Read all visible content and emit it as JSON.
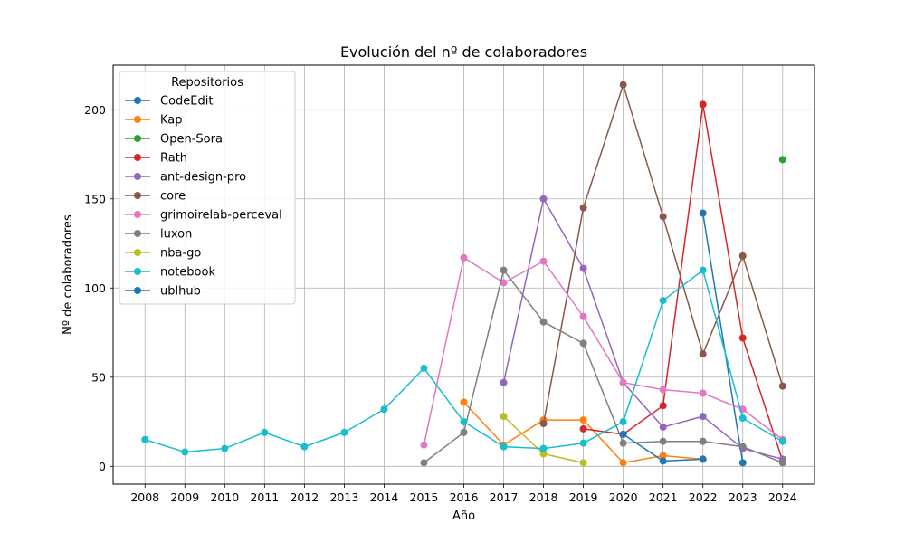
{
  "chart_data": {
    "type": "line",
    "title": "Evolución del nº de colaboradores",
    "xlabel": "Año",
    "ylabel": "Nº de colaboradores",
    "x": [
      2008,
      2009,
      2010,
      2011,
      2012,
      2013,
      2014,
      2015,
      2016,
      2017,
      2018,
      2019,
      2020,
      2021,
      2022,
      2023,
      2024
    ],
    "xlim": [
      2007.2,
      2024.8
    ],
    "ylim": [
      -10,
      225
    ],
    "yticks": [
      0,
      50,
      100,
      150,
      200
    ],
    "grid": true,
    "legend": {
      "title": "Repositorios",
      "placement": "top-left"
    },
    "series": [
      {
        "name": "CodeEdit",
        "color": "#1f77b4",
        "points": [
          [
            2022,
            142
          ],
          [
            2023,
            2
          ]
        ]
      },
      {
        "name": "Kap",
        "color": "#ff7f0e",
        "points": [
          [
            2016,
            36
          ],
          [
            2017,
            12
          ],
          [
            2018,
            26
          ],
          [
            2019,
            26
          ],
          [
            2020,
            2
          ],
          [
            2021,
            6
          ],
          [
            2022,
            4
          ]
        ]
      },
      {
        "name": "Open-Sora",
        "color": "#2ca02c",
        "points": [
          [
            2024,
            172
          ]
        ]
      },
      {
        "name": "Rath",
        "color": "#d62728",
        "points": [
          [
            2019,
            21
          ],
          [
            2020,
            18
          ],
          [
            2021,
            34
          ],
          [
            2022,
            203
          ],
          [
            2023,
            72
          ],
          [
            2024,
            3
          ]
        ]
      },
      {
        "name": "ant-design-pro",
        "color": "#9467bd",
        "points": [
          [
            2017,
            47
          ],
          [
            2018,
            150
          ],
          [
            2019,
            111
          ],
          [
            2020,
            47
          ],
          [
            2021,
            22
          ],
          [
            2022,
            28
          ],
          [
            2023,
            10
          ],
          [
            2024,
            4
          ]
        ]
      },
      {
        "name": "core",
        "color": "#8c564b",
        "points": [
          [
            2018,
            24
          ],
          [
            2019,
            145
          ],
          [
            2020,
            214
          ],
          [
            2021,
            140
          ],
          [
            2022,
            63
          ],
          [
            2023,
            118
          ],
          [
            2024,
            45
          ]
        ]
      },
      {
        "name": "grimoirelab-perceval",
        "color": "#e377c2",
        "points": [
          [
            2015,
            12
          ],
          [
            2016,
            117
          ],
          [
            2017,
            103
          ],
          [
            2018,
            115
          ],
          [
            2019,
            84
          ],
          [
            2020,
            47
          ],
          [
            2021,
            43
          ],
          [
            2022,
            41
          ],
          [
            2023,
            32
          ],
          [
            2024,
            15
          ]
        ]
      },
      {
        "name": "luxon",
        "color": "#7f7f7f",
        "points": [
          [
            2015,
            2
          ],
          [
            2016,
            19
          ],
          [
            2017,
            110
          ],
          [
            2018,
            81
          ],
          [
            2019,
            69
          ],
          [
            2020,
            13
          ],
          [
            2021,
            14
          ],
          [
            2022,
            14
          ],
          [
            2023,
            11
          ],
          [
            2024,
            2
          ]
        ]
      },
      {
        "name": "nba-go",
        "color": "#bcbd22",
        "points": [
          [
            2017,
            28
          ],
          [
            2018,
            7
          ],
          [
            2019,
            2
          ]
        ]
      },
      {
        "name": "notebook",
        "color": "#17becf",
        "points": [
          [
            2008,
            15
          ],
          [
            2009,
            8
          ],
          [
            2010,
            10
          ],
          [
            2011,
            19
          ],
          [
            2012,
            11
          ],
          [
            2013,
            19
          ],
          [
            2014,
            32
          ],
          [
            2015,
            55
          ],
          [
            2016,
            25
          ],
          [
            2017,
            11
          ],
          [
            2018,
            10
          ],
          [
            2019,
            13
          ],
          [
            2020,
            25
          ],
          [
            2021,
            93
          ],
          [
            2022,
            110
          ],
          [
            2023,
            27
          ],
          [
            2024,
            14
          ]
        ]
      },
      {
        "name": "ublhub",
        "color": "#1f77b4",
        "points": [
          [
            2020,
            18
          ],
          [
            2021,
            3
          ],
          [
            2022,
            4
          ]
        ]
      }
    ]
  }
}
